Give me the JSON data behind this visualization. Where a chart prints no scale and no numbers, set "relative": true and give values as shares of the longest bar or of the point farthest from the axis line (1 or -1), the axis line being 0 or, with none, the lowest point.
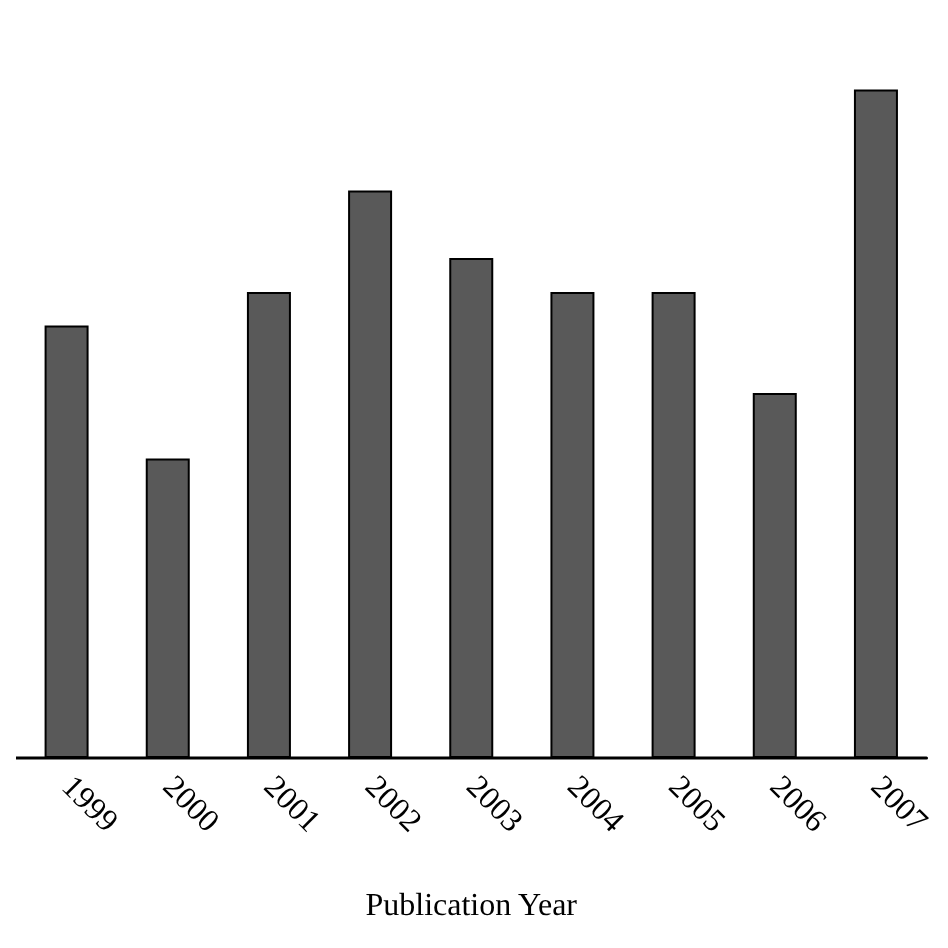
{
  "chart_data": {
    "type": "bar",
    "xlabel": "Publication Year",
    "relative": true,
    "categories": [
      "1999",
      "2000",
      "2001",
      "2002",
      "2003",
      "2004",
      "2005",
      "2006",
      "2007"
    ],
    "values": [
      0.647,
      0.448,
      0.697,
      0.849,
      0.748,
      0.697,
      0.697,
      0.546,
      1
    ],
    "color": "#595959"
  }
}
